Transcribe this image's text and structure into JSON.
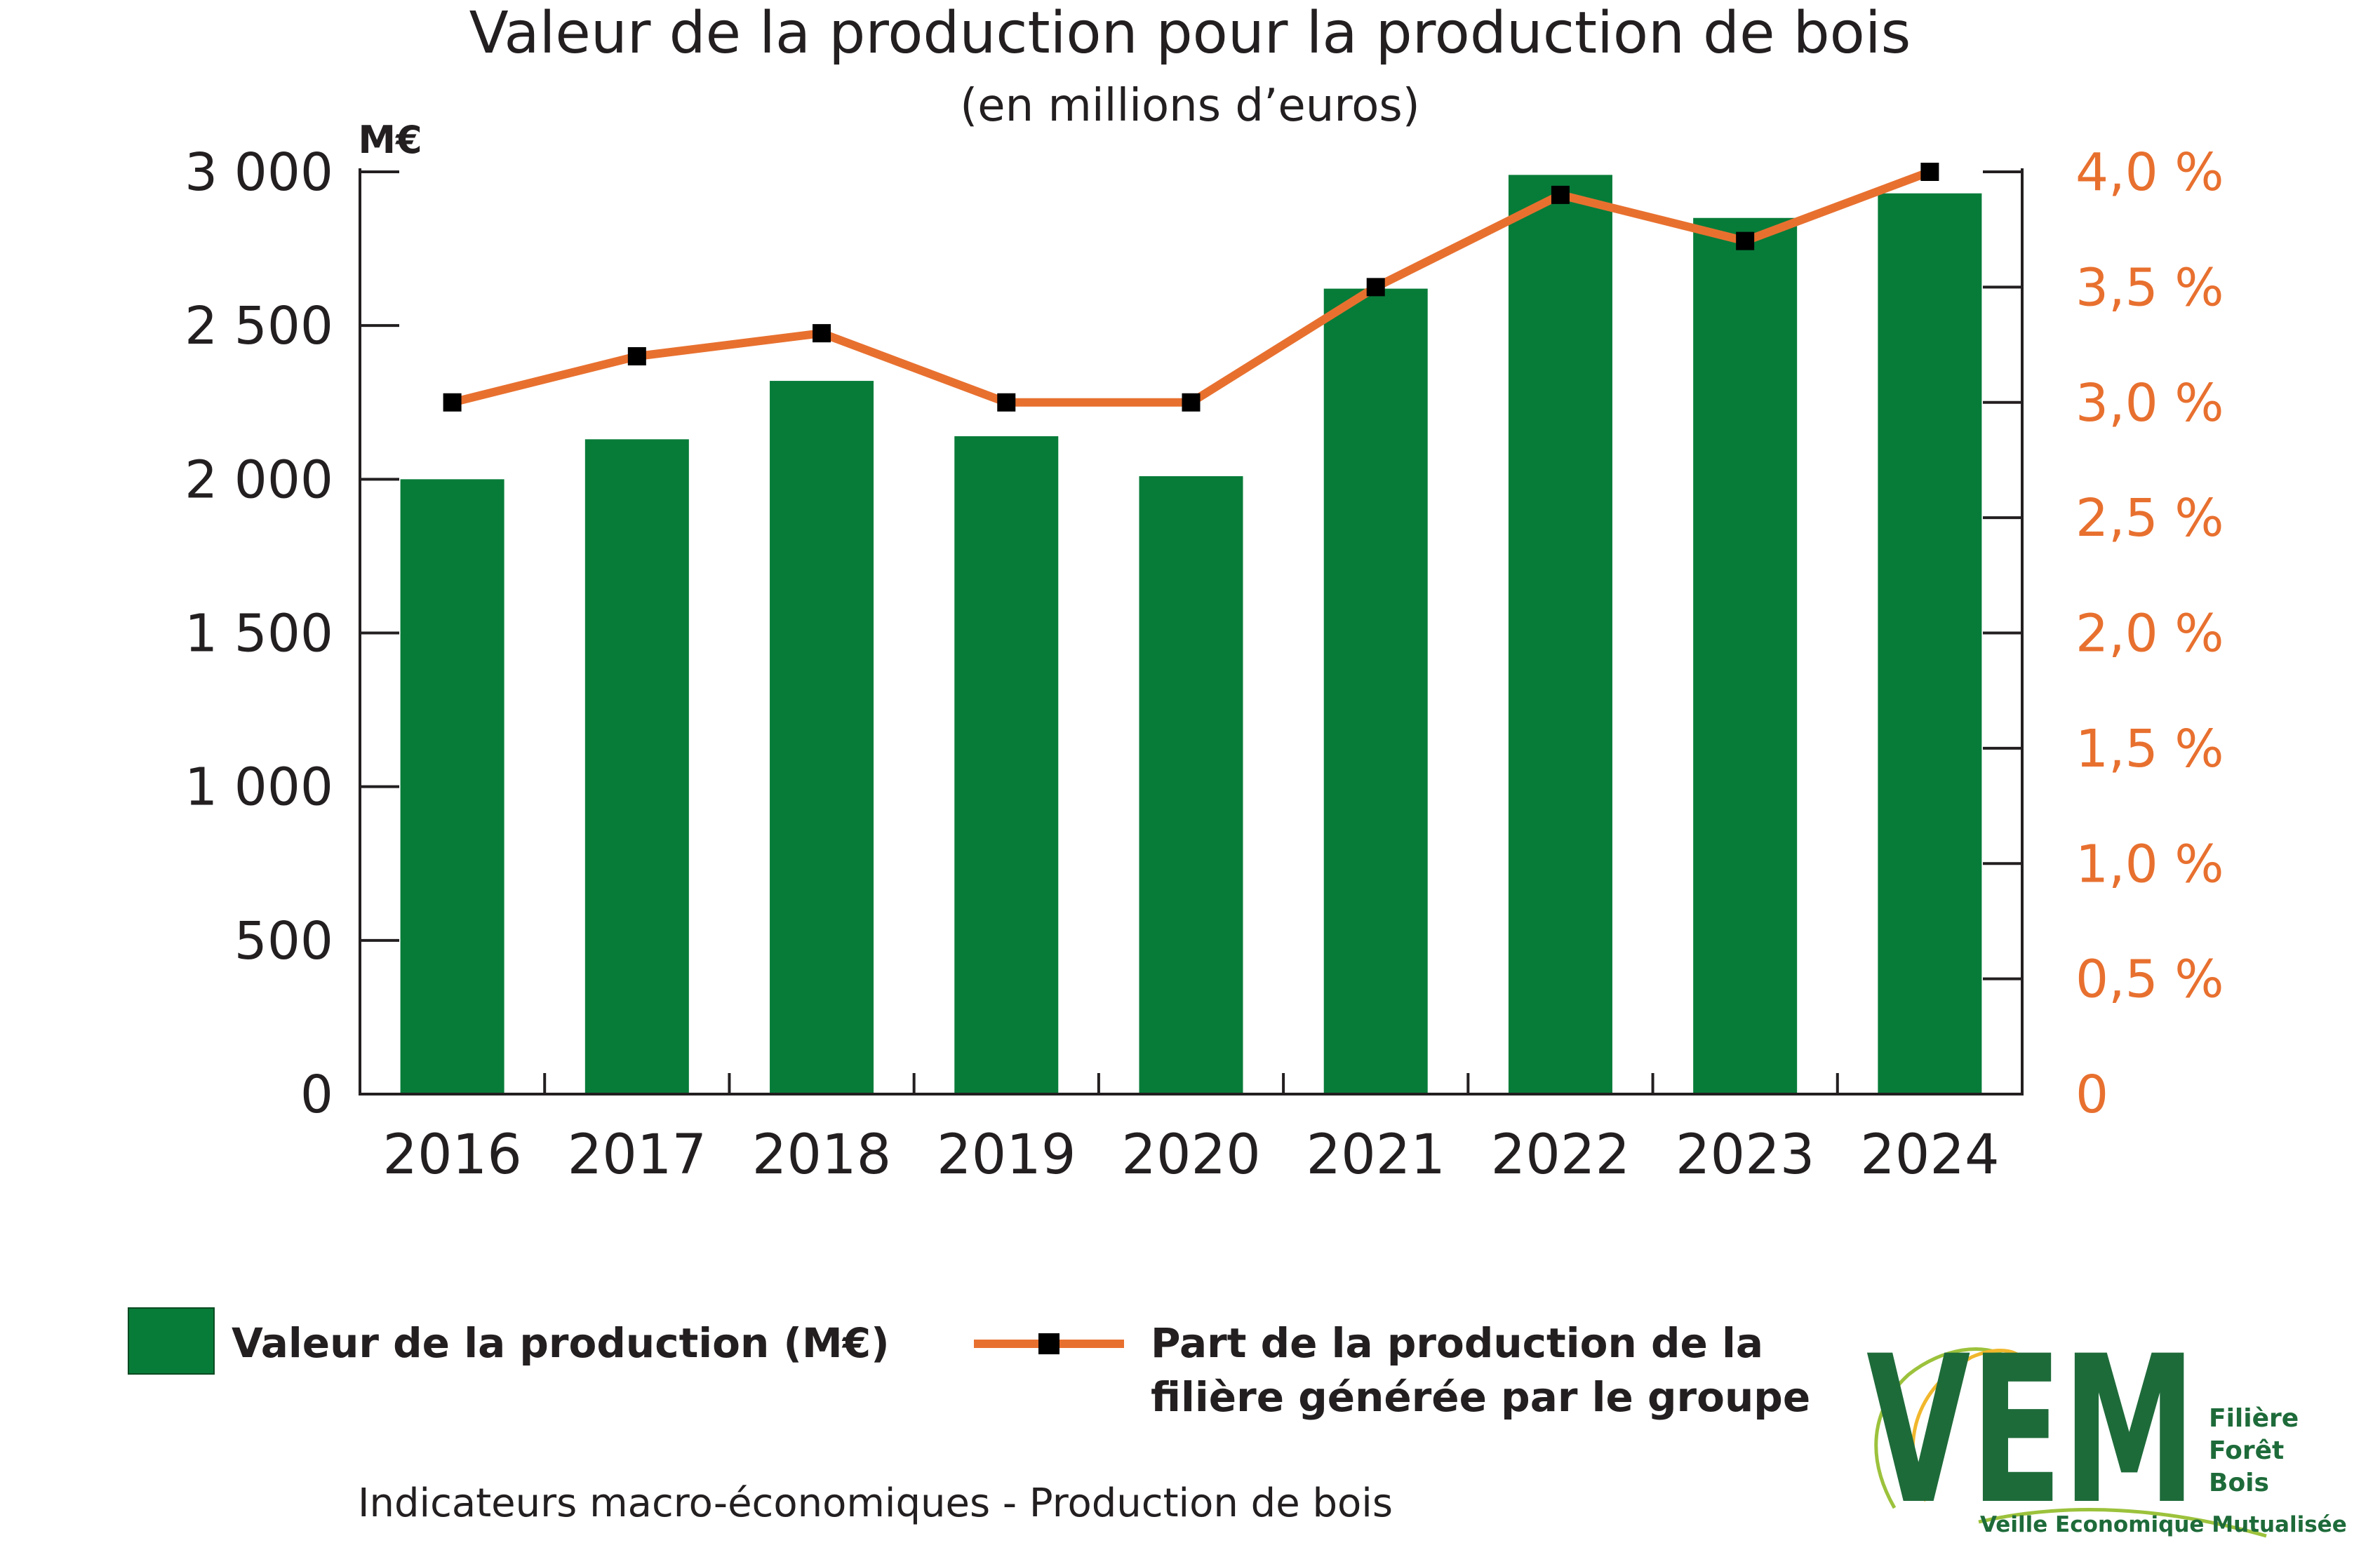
{
  "chart_data": {
    "type": "bar",
    "title": "Valeur de la production pour la production de bois",
    "subtitle": "(en millions d’euros)",
    "y_unit_label": "M€",
    "categories": [
      "2016",
      "2017",
      "2018",
      "2019",
      "2020",
      "2021",
      "2022",
      "2023",
      "2024"
    ],
    "series": [
      {
        "name": "Valeur de la production (M€)",
        "type": "bar",
        "axis": "left",
        "color": "#077c39",
        "values": [
          2000,
          2130,
          2320,
          2140,
          2010,
          2620,
          2990,
          2850,
          2930
        ]
      },
      {
        "name": "Part de la production de la filière générée par le groupe",
        "type": "line",
        "axis": "right",
        "color": "#e8702f",
        "marker_color": "#000000",
        "values": [
          3.0,
          3.2,
          3.3,
          3.0,
          3.0,
          3.5,
          3.9,
          3.7,
          4.0
        ]
      }
    ],
    "ylim": [
      0,
      3000
    ],
    "yticks": [
      0,
      500,
      1000,
      1500,
      2000,
      2500,
      3000
    ],
    "ytick_labels": [
      "0",
      "500",
      "1 000",
      "1 500",
      "2 000",
      "2 500",
      "3 000"
    ],
    "y2lim": [
      0,
      4.0
    ],
    "y2ticks": [
      0,
      0.5,
      1.0,
      1.5,
      2.0,
      2.5,
      3.0,
      3.5,
      4.0
    ],
    "y2tick_labels": [
      "0",
      "0,5 %",
      "1,0 %",
      "1,5 %",
      "2,0 %",
      "2,5 %",
      "3,0 %",
      "3,5 %",
      "4,0 %"
    ],
    "grid": false,
    "legend_position": "bottom"
  },
  "legend": {
    "bar_label": "Valeur de la production (M€)",
    "line_label_1": "Part de la production de la",
    "line_label_2": "filière générée par le groupe"
  },
  "footer": {
    "caption": "Indicateurs macro-économiques - Production de bois"
  },
  "logo": {
    "letters": "VEM",
    "line1": "Filière",
    "line2": "Forêt",
    "line3": "Bois",
    "tagline": "Veille Economique Mutualisée"
  }
}
